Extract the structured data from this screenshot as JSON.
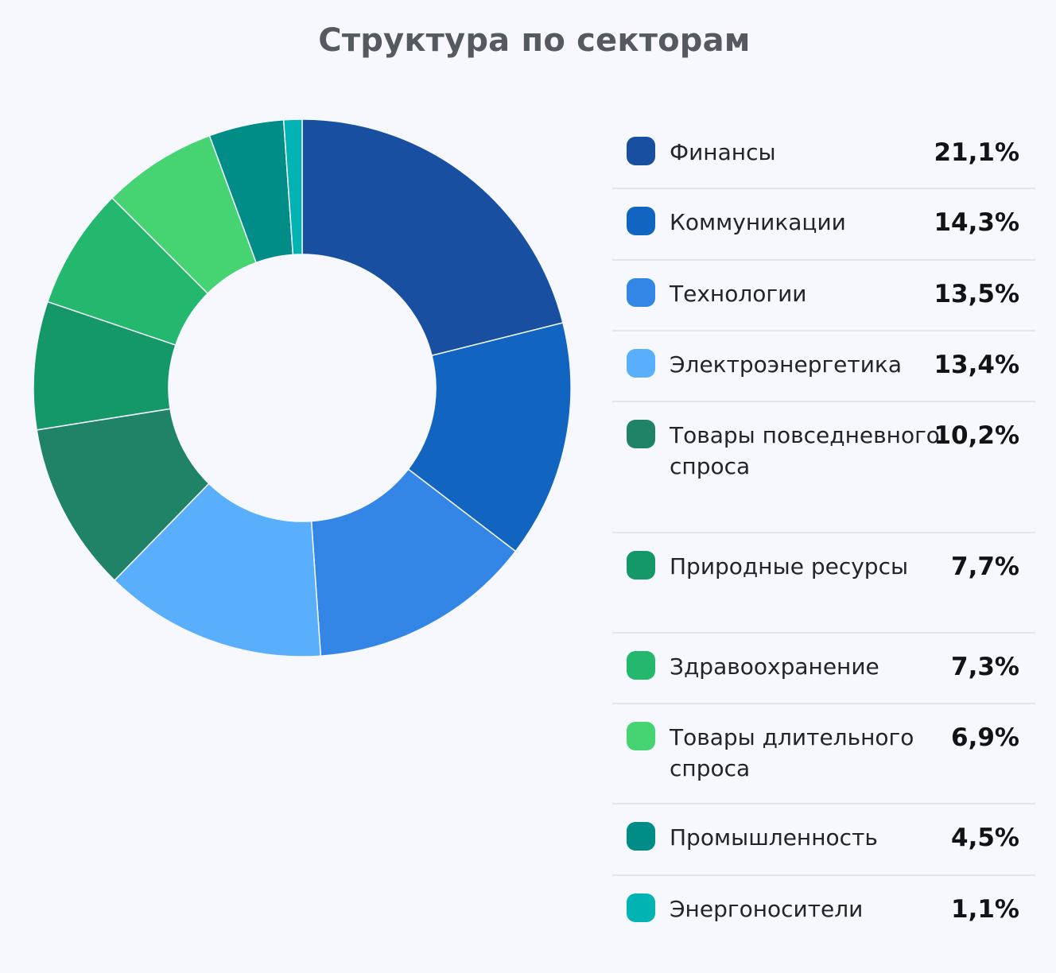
{
  "chart_data": {
    "type": "pie",
    "title": "Структура по секторам",
    "donut": true,
    "legend_position": "right",
    "slices": [
      {
        "label": "Финансы",
        "value": 21.1,
        "value_label": "21,1%",
        "color": "#184fa0"
      },
      {
        "label": "Коммуникации",
        "value": 14.3,
        "value_label": "14,3%",
        "color": "#1164c0"
      },
      {
        "label": "Технологии",
        "value": 13.5,
        "value_label": "13,5%",
        "color": "#3486e6"
      },
      {
        "label": "Электроэнергетика",
        "value": 13.4,
        "value_label": "13,4%",
        "color": "#5aaffc"
      },
      {
        "label": "Товары повседневного спроса",
        "value": 10.2,
        "value_label": "10,2%",
        "color": "#208368"
      },
      {
        "label": "Природные ресурсы",
        "value": 7.7,
        "value_label": "7,7%",
        "color": "#159868"
      },
      {
        "label": "Здравоохранение",
        "value": 7.3,
        "value_label": "7,3%",
        "color": "#23b86e"
      },
      {
        "label": "Товары длительного спроса",
        "value": 6.9,
        "value_label": "6,9%",
        "color": "#46d372"
      },
      {
        "label": "Промышленность",
        "value": 4.5,
        "value_label": "4,5%",
        "color": "#008c87"
      },
      {
        "label": "Энергоносители",
        "value": 1.1,
        "value_label": "1,1%",
        "color": "#02b3b3"
      }
    ]
  }
}
